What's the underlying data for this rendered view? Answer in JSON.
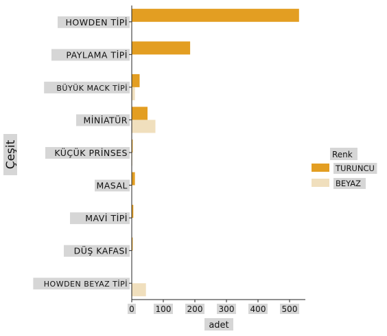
{
  "chart_data": {
    "type": "bar",
    "orientation": "horizontal",
    "categories": [
      "HOWDEN TİPİ",
      "PAYLAMA TİPİ",
      "BÜYÜK MACK TİPİ",
      "MİNİATÜR",
      "KÜÇÜK PRİNSES",
      "MASAL",
      "MAVİ TİPİ",
      "DÜŞ KAFASI",
      "HOWDEN BEYAZ TİPİ"
    ],
    "series": [
      {
        "name": "TURUNCU",
        "color": "#e39e22",
        "values": [
          530,
          185,
          25,
          50,
          3,
          10,
          5,
          3,
          0
        ]
      },
      {
        "name": "BEYAZ",
        "color": "#f0dfbd",
        "values": [
          0,
          0,
          10,
          75,
          2,
          0,
          0,
          0,
          45
        ]
      }
    ],
    "xlabel": "adet",
    "ylabel": "Çeşit",
    "xticks": [
      0,
      100,
      200,
      300,
      400,
      500
    ],
    "xlim": [
      0,
      550
    ],
    "legend": {
      "title": "Renk",
      "placement": "right"
    },
    "grid": false
  }
}
